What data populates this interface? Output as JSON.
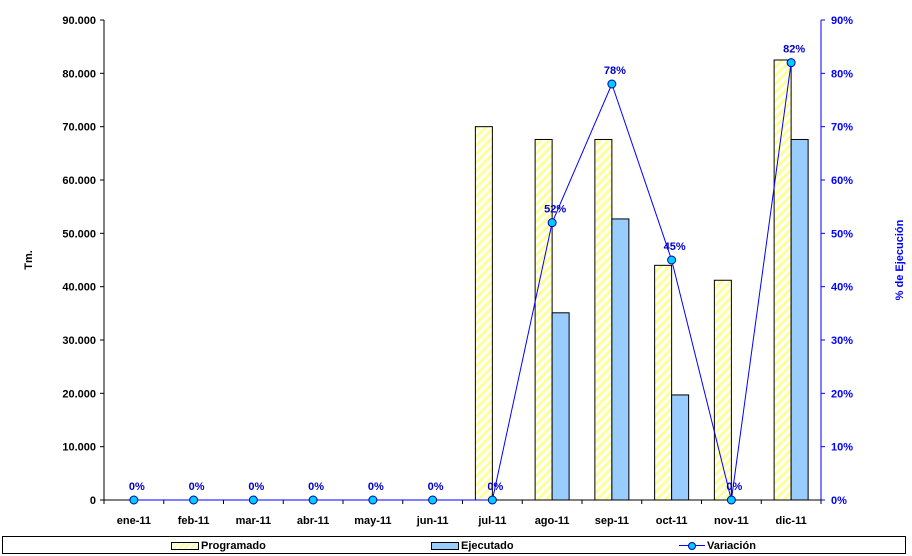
{
  "chart_data": {
    "type": "bar",
    "categories": [
      "ene-11",
      "feb-11",
      "mar-11",
      "abr-11",
      "may-11",
      "jun-11",
      "jul-11",
      "ago-11",
      "sep-11",
      "oct-11",
      "nov-11",
      "dic-11"
    ],
    "series": [
      {
        "name": "Programado",
        "type": "bar",
        "axis": "left",
        "color": "#ffff99",
        "values": [
          0,
          0,
          0,
          0,
          0,
          0,
          70000,
          67600,
          67600,
          44000,
          41200,
          82500
        ]
      },
      {
        "name": "Ejecutado",
        "type": "bar",
        "axis": "left",
        "color": "#99ccff",
        "values": [
          0,
          0,
          0,
          0,
          0,
          0,
          0,
          35100,
          52700,
          19700,
          0,
          67600
        ]
      },
      {
        "name": "Variación",
        "type": "line",
        "axis": "right",
        "color": "#0000ff",
        "values": [
          0,
          0,
          0,
          0,
          0,
          0,
          0,
          52,
          78,
          45,
          0,
          82
        ],
        "labels": [
          "0%",
          "0%",
          "0%",
          "0%",
          "0%",
          "0%",
          "0%",
          "52%",
          "78%",
          "45%",
          "0%",
          "82%"
        ]
      }
    ],
    "ylabel": "Tm.",
    "y2label": "% de Ejecución",
    "ylim": [
      0,
      90000
    ],
    "y2lim": [
      0,
      90
    ],
    "yticks": [
      "0",
      "10.000",
      "20.000",
      "30.000",
      "40.000",
      "50.000",
      "60.000",
      "70.000",
      "80.000",
      "90.000"
    ],
    "y2ticks": [
      "0%",
      "10%",
      "20%",
      "30%",
      "40%",
      "50%",
      "60%",
      "70%",
      "80%",
      "90%"
    ],
    "legend_position": "bottom",
    "grid": false
  }
}
